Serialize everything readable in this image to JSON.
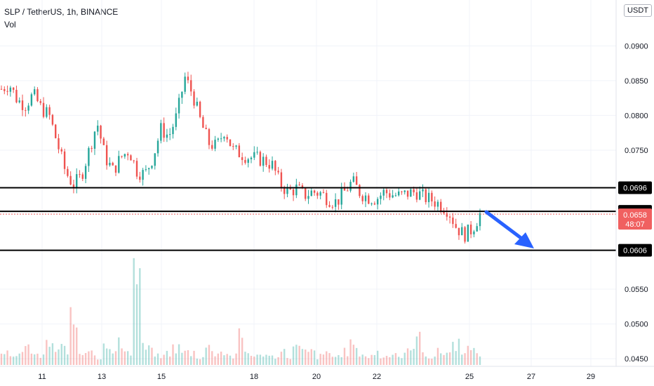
{
  "header": {
    "title": "SLP / TetherUS, 1h, BINANCE",
    "volume_label": "Vol",
    "currency": "USDT"
  },
  "chart_data": {
    "type": "candlestick",
    "title": "SLP / TetherUS, 1h, BINANCE",
    "y_axis": {
      "ticks": [
        "0.0900",
        "0.0850",
        "0.0800",
        "0.0750",
        "0.0550",
        "0.0500",
        "0.0450"
      ],
      "range": [
        0.0439,
        0.0966
      ],
      "position": "right"
    },
    "x_axis": {
      "ticks": [
        "11",
        "13",
        "15",
        "18",
        "20",
        "22",
        "25",
        "27",
        "29"
      ]
    },
    "series": [
      {
        "name": "SLP / TetherUS",
        "price_path": [
          0.0838,
          0.0845,
          0.0822,
          0.0815,
          0.083,
          0.081,
          0.08,
          0.076,
          0.072,
          0.07,
          0.0712,
          0.075,
          0.079,
          0.074,
          0.072,
          0.074,
          0.075,
          0.072,
          0.0715,
          0.074,
          0.078,
          0.077,
          0.08,
          0.0855,
          0.083,
          0.079,
          0.076,
          0.0755,
          0.078,
          0.075,
          0.0745,
          0.074,
          0.0738,
          0.0735,
          0.0728,
          0.07,
          0.069,
          0.0695,
          0.0685,
          0.069,
          0.0688,
          0.068,
          0.0675,
          0.069,
          0.0705,
          0.0688,
          0.0682,
          0.068,
          0.069,
          0.0686,
          0.0684,
          0.0688,
          0.069,
          0.0682,
          0.0678,
          0.0672,
          0.0664,
          0.064,
          0.0628,
          0.0636,
          0.0658
        ]
      },
      {
        "name": "Vol",
        "values": [
          0.2,
          0.3,
          0.2,
          0.4,
          0.3,
          0.2,
          0.5,
          0.3,
          0.4,
          1.0,
          0.3,
          0.4,
          0.2,
          0.6,
          0.3,
          0.5,
          0.3,
          2.2,
          0.4,
          0.3,
          0.2,
          0.3,
          0.4,
          0.3,
          0.3,
          0.2,
          0.4,
          0.3,
          0.3,
          0.2,
          0.7,
          0.3,
          0.2,
          0.3,
          0.2,
          0.3,
          0.2,
          0.4,
          0.3,
          0.3,
          0.2,
          0.3,
          0.2,
          0.3,
          0.5,
          0.3,
          0.2,
          0.3,
          0.2,
          0.3,
          0.2,
          0.3,
          0.6,
          0.3,
          0.2,
          0.3,
          0.3,
          0.5,
          0.4,
          0.3,
          0.3
        ]
      }
    ],
    "levels": [
      {
        "label": "0.0696",
        "value": 0.0696
      },
      {
        "label": "0.0662",
        "value": 0.0662
      },
      {
        "label": "0.0606",
        "value": 0.0606
      }
    ],
    "current_price": {
      "price": "0.0658",
      "countdown": "48:07",
      "value": 0.0658
    },
    "annotation": "arrow pointing down toward 0.0606",
    "grid": true,
    "colors": {
      "up": "#26a69a",
      "down": "#ef5350",
      "arrow": "#2962ff",
      "level": "#000000",
      "current": "#f06060"
    }
  }
}
